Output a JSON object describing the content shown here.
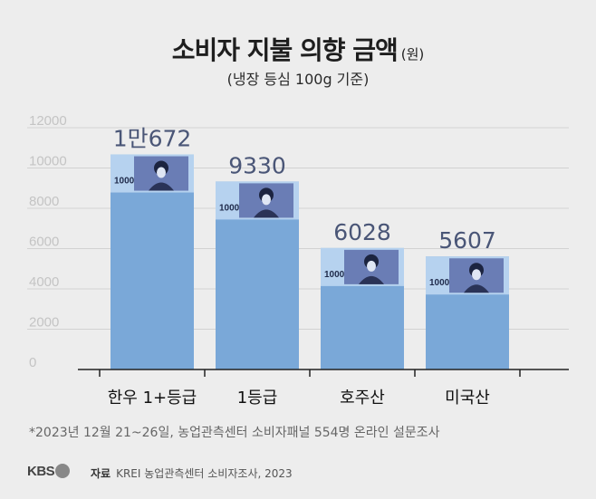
{
  "header": {
    "title": "소비자 지불 의향 금액",
    "title_unit": "(원)",
    "subtitle": "(냉장 등심 100g 기준)"
  },
  "chart_data": {
    "type": "bar",
    "categories": [
      "한우 1+등급",
      "1등급",
      "호주산",
      "미국산"
    ],
    "values": [
      10672,
      9330,
      6028,
      5607
    ],
    "value_labels": [
      "1만672",
      "9330",
      "6028",
      "5607"
    ],
    "yticks": [
      "0",
      "2000",
      "4000",
      "6000",
      "8000",
      "10000",
      "12000"
    ],
    "ylim": [
      0,
      12000
    ],
    "banknote_label": "1000",
    "grid": true,
    "colors": {
      "bar": "#7aa8d8",
      "note_light": "#b6d2ef",
      "note_dark": "#5d6faa",
      "value_text": "#4a5677"
    }
  },
  "footer": {
    "footnote": "*2023년 12월 21~26일, 농업관측센터 소비자패널 554명 온라인 설문조사",
    "logo": "KBS",
    "source_label": "자료",
    "source_text": "KREI 농업관측센터 소비자조사, 2023"
  }
}
